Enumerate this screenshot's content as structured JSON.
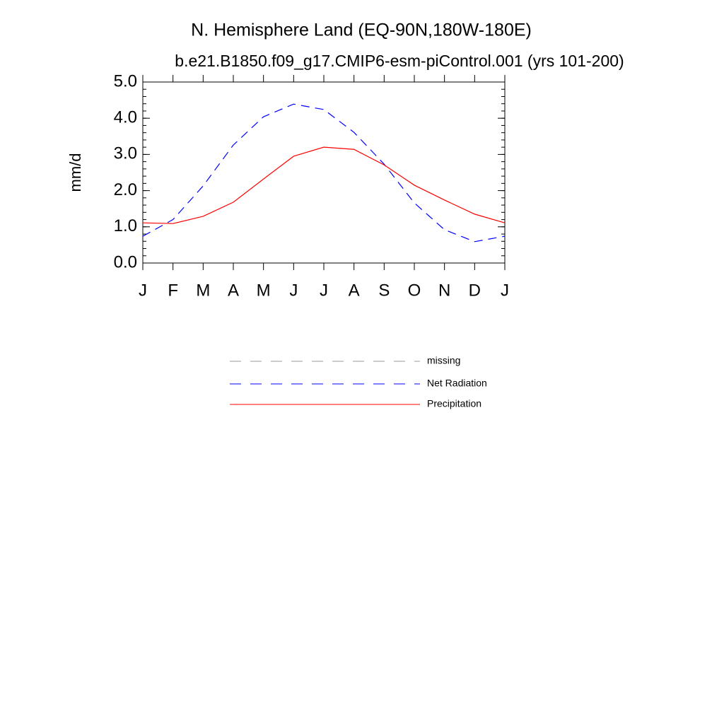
{
  "chart_data": {
    "type": "line",
    "title": "N. Hemisphere Land (EQ-90N,180W-180E)",
    "subtitle": "b.e21.B1850.f09_g17.CMIP6-esm-piControl.001 (yrs 101-200)",
    "y_label": "mm/d",
    "categories": [
      "J",
      "F",
      "M",
      "A",
      "M",
      "J",
      "J",
      "A",
      "S",
      "O",
      "N",
      "D",
      "J"
    ],
    "ylim": [
      0,
      5
    ],
    "yticks": [
      {
        "value": 0,
        "label": "0.0"
      },
      {
        "value": 1,
        "label": "1.0"
      },
      {
        "value": 2,
        "label": "2.0"
      },
      {
        "value": 3,
        "label": "3.0"
      },
      {
        "value": 4,
        "label": "4.0"
      },
      {
        "value": 5,
        "label": "5.0"
      }
    ],
    "series": [
      {
        "name": "missing",
        "color": "#999999",
        "dashed": true,
        "values": [
          null,
          null,
          null,
          null,
          null,
          null,
          null,
          null,
          null,
          null,
          null,
          null,
          null
        ]
      },
      {
        "name": "Net Radiation",
        "color": "#0000ff",
        "dashed": true,
        "values": [
          0.74,
          1.2,
          2.13,
          3.26,
          4.04,
          4.39,
          4.24,
          3.61,
          2.73,
          1.66,
          0.92,
          0.59,
          0.74
        ]
      },
      {
        "name": "Precipitation",
        "color": "#ff0000",
        "dashed": false,
        "values": [
          1.11,
          1.09,
          1.29,
          1.68,
          2.32,
          2.95,
          3.2,
          3.14,
          2.71,
          2.15,
          1.74,
          1.35,
          1.11
        ]
      }
    ]
  }
}
